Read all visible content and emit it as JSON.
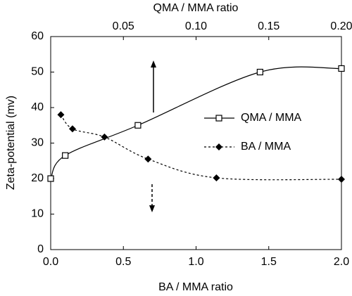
{
  "chart_data": {
    "type": "line",
    "xlabel": "BA / MMA ratio",
    "x2label": "QMA / MMA ratio",
    "ylabel": "Zeta-potential (mv)",
    "xlim": [
      0,
      2.0
    ],
    "xticks": [
      {
        "value": 0,
        "label": "0.0"
      },
      {
        "value": 0.5,
        "label": "0.5"
      },
      {
        "value": 1.0,
        "label": "1.0"
      },
      {
        "value": 1.5,
        "label": "1.5"
      },
      {
        "value": 2.0,
        "label": "2.0"
      }
    ],
    "x2lim": [
      0,
      0.2
    ],
    "x2ticks": [
      0.05,
      {
        "value": 0.1,
        "label": "0.10"
      },
      0.15,
      {
        "value": 0.2,
        "label": "0.20"
      }
    ],
    "ylim": [
      0,
      60
    ],
    "yticks": [
      0,
      10,
      20,
      30,
      40,
      50,
      60
    ],
    "series": [
      {
        "name": "QMA / MMA",
        "axis": "x2",
        "color": "#000",
        "marker": "square",
        "dash": false,
        "x": [
          0.0,
          0.01,
          0.06,
          0.144,
          0.2
        ],
        "values": [
          20,
          26.5,
          35,
          50,
          51
        ]
      },
      {
        "name": "BA / MMA",
        "axis": "x",
        "color": "#000",
        "marker": "diamond",
        "dash": true,
        "x": [
          0.07,
          0.15,
          0.37,
          0.67,
          1.14,
          2.0
        ],
        "values": [
          38,
          34,
          31.7,
          25.5,
          20.2,
          19.8
        ]
      }
    ]
  }
}
